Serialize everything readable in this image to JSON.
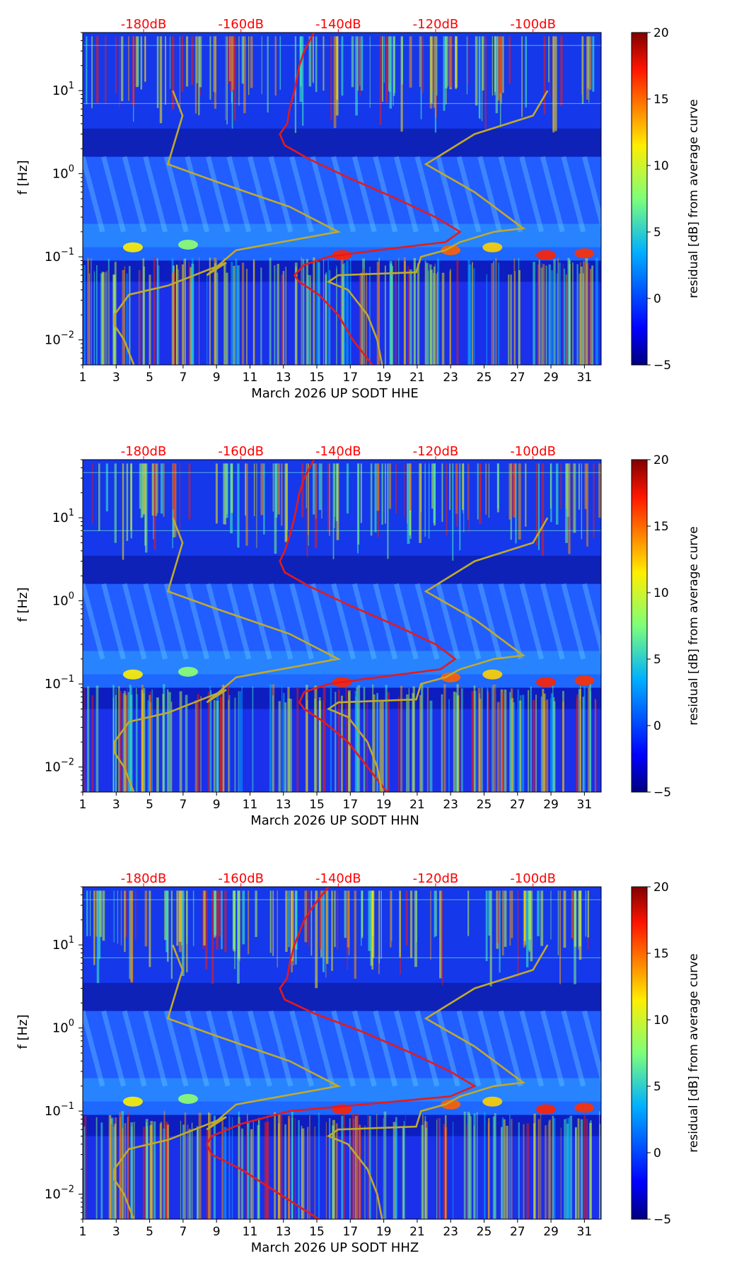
{
  "figure": {
    "colorbar": {
      "label": "residual [dB] from average curve",
      "ticks": [
        20,
        15,
        10,
        5,
        0,
        -5
      ],
      "range": [
        -5,
        20
      ]
    },
    "top_axis": {
      "labels": [
        "-180dB",
        "-160dB",
        "-140dB",
        "-120dB",
        "-100dB"
      ],
      "color": "#ff0000"
    },
    "ylabel": "f [Hz]",
    "xticks": [
      "1",
      "3",
      "5",
      "7",
      "9",
      "11",
      "13",
      "15",
      "17",
      "19",
      "21",
      "23",
      "25",
      "27",
      "29",
      "31"
    ]
  },
  "chart_data": [
    {
      "type": "heatmap",
      "title": "",
      "xlabel": "March 2026 UP SODT  HHE",
      "ylabel": "f [Hz]",
      "xlim": [
        1,
        32
      ],
      "ylim": [
        0.005,
        50
      ],
      "yscale": "log",
      "x_ticks": [
        1,
        3,
        5,
        7,
        9,
        11,
        13,
        15,
        17,
        19,
        21,
        23,
        25,
        27,
        29,
        31
      ],
      "y_ticks": [
        "10^-2",
        "10^-1",
        "10^0",
        "10^1"
      ],
      "top_axis_db": [
        -180,
        -160,
        -140,
        -120,
        -100
      ],
      "series": [
        {
          "name": "median PSD (red)",
          "color": "#e41a1c",
          "points": [
            [
              -145,
              50
            ],
            [
              -147,
              30
            ],
            [
              -148,
              20
            ],
            [
              -149,
              10
            ],
            [
              -150,
              6
            ],
            [
              -150.5,
              4
            ],
            [
              -152,
              3
            ],
            [
              -151,
              2.2
            ],
            [
              -146,
              1.5
            ],
            [
              -138,
              0.9
            ],
            [
              -128,
              0.5
            ],
            [
              -120,
              0.3
            ],
            [
              -115,
              0.2
            ],
            [
              -118,
              0.15
            ],
            [
              -132,
              0.12
            ],
            [
              -142,
              0.1
            ],
            [
              -147,
              0.08
            ],
            [
              -149,
              0.06
            ],
            [
              -148,
              0.05
            ],
            [
              -144,
              0.035
            ],
            [
              -140,
              0.02
            ],
            [
              -137,
              0.01
            ],
            [
              -133,
              0.005
            ]
          ]
        },
        {
          "name": "NLNM/NHNM (olive)",
          "color": "#bfaa2c",
          "points": [
            [
              -174,
              10
            ],
            [
              -172,
              5
            ],
            [
              -175,
              1.3
            ],
            [
              -165,
              0.8
            ],
            [
              -150,
              0.4
            ],
            [
              -140,
              0.2
            ],
            [
              -161,
              0.12
            ],
            [
              -167,
              0.06
            ],
            [
              -163,
              0.085
            ],
            [
              -175,
              0.045
            ],
            [
              -183,
              0.035
            ],
            [
              -186,
              0.02
            ],
            [
              -186,
              0.015
            ],
            [
              -184,
              0.01
            ],
            [
              -183,
              0.007
            ],
            [
              -182,
              0.005
            ]
          ]
        },
        {
          "name": "NHNM (olive right)",
          "color": "#bfaa2c",
          "points": [
            [
              -97,
              10
            ],
            [
              -100,
              5
            ],
            [
              -112,
              3
            ],
            [
              -122,
              1.3
            ],
            [
              -112,
              0.6
            ],
            [
              -102,
              0.22
            ],
            [
              -108,
              0.2
            ],
            [
              -115,
              0.15
            ],
            [
              -118,
              0.12
            ],
            [
              -123,
              0.1
            ],
            [
              -124,
              0.065
            ],
            [
              -140,
              0.06
            ],
            [
              -142,
              0.05
            ],
            [
              -138,
              0.04
            ],
            [
              -134,
              0.02
            ],
            [
              -132,
              0.01
            ],
            [
              -131,
              0.005
            ]
          ]
        }
      ]
    },
    {
      "type": "heatmap",
      "title": "",
      "xlabel": "March 2026 UP SODT  HHN",
      "ylabel": "f [Hz]",
      "xlim": [
        1,
        32
      ],
      "ylim": [
        0.005,
        50
      ],
      "yscale": "log",
      "x_ticks": [
        1,
        3,
        5,
        7,
        9,
        11,
        13,
        15,
        17,
        19,
        21,
        23,
        25,
        27,
        29,
        31
      ],
      "y_ticks": [
        "10^-2",
        "10^-1",
        "10^0",
        "10^1"
      ],
      "top_axis_db": [
        -180,
        -160,
        -140,
        -120,
        -100
      ],
      "series": [
        {
          "name": "median PSD (red)",
          "color": "#e41a1c",
          "points": [
            [
              -145,
              50
            ],
            [
              -147,
              30
            ],
            [
              -148,
              20
            ],
            [
              -149,
              10
            ],
            [
              -150,
              6
            ],
            [
              -151,
              4
            ],
            [
              -152,
              3
            ],
            [
              -151,
              2.2
            ],
            [
              -146,
              1.5
            ],
            [
              -138,
              0.9
            ],
            [
              -128,
              0.5
            ],
            [
              -120,
              0.3
            ],
            [
              -116,
              0.2
            ],
            [
              -119,
              0.15
            ],
            [
              -132,
              0.12
            ],
            [
              -142,
              0.1
            ],
            [
              -147,
              0.08
            ],
            [
              -148,
              0.06
            ],
            [
              -147,
              0.05
            ],
            [
              -143,
              0.035
            ],
            [
              -138,
              0.02
            ],
            [
              -134,
              0.01
            ],
            [
              -130,
              0.005
            ]
          ]
        },
        {
          "name": "NLNM/NHNM (olive)",
          "color": "#bfaa2c",
          "points": [
            [
              -174,
              10
            ],
            [
              -172,
              5
            ],
            [
              -175,
              1.3
            ],
            [
              -165,
              0.8
            ],
            [
              -150,
              0.4
            ],
            [
              -140,
              0.2
            ],
            [
              -161,
              0.12
            ],
            [
              -167,
              0.06
            ],
            [
              -163,
              0.085
            ],
            [
              -175,
              0.045
            ],
            [
              -183,
              0.035
            ],
            [
              -186,
              0.02
            ],
            [
              -186,
              0.015
            ],
            [
              -184,
              0.01
            ],
            [
              -183,
              0.007
            ],
            [
              -182,
              0.005
            ]
          ]
        },
        {
          "name": "NHNM (olive right)",
          "color": "#bfaa2c",
          "points": [
            [
              -97,
              10
            ],
            [
              -100,
              5
            ],
            [
              -112,
              3
            ],
            [
              -122,
              1.3
            ],
            [
              -112,
              0.6
            ],
            [
              -102,
              0.22
            ],
            [
              -108,
              0.2
            ],
            [
              -115,
              0.15
            ],
            [
              -118,
              0.12
            ],
            [
              -123,
              0.1
            ],
            [
              -124,
              0.065
            ],
            [
              -140,
              0.06
            ],
            [
              -142,
              0.05
            ],
            [
              -138,
              0.04
            ],
            [
              -134,
              0.02
            ],
            [
              -132,
              0.01
            ],
            [
              -131,
              0.005
            ]
          ]
        }
      ]
    },
    {
      "type": "heatmap",
      "title": "",
      "xlabel": "March 2026 UP SODT  HHZ",
      "ylabel": "f [Hz]",
      "xlim": [
        1,
        32
      ],
      "ylim": [
        0.005,
        50
      ],
      "yscale": "log",
      "x_ticks": [
        1,
        3,
        5,
        7,
        9,
        11,
        13,
        15,
        17,
        19,
        21,
        23,
        25,
        27,
        29,
        31
      ],
      "y_ticks": [
        "10^-2",
        "10^-1",
        "10^0",
        "10^1"
      ],
      "top_axis_db": [
        -180,
        -160,
        -140,
        -120,
        -100
      ],
      "series": [
        {
          "name": "median PSD (red)",
          "color": "#e41a1c",
          "points": [
            [
              -142,
              50
            ],
            [
              -145,
              30
            ],
            [
              -147,
              20
            ],
            [
              -149,
              10
            ],
            [
              -150,
              6
            ],
            [
              -150.5,
              4
            ],
            [
              -152,
              3
            ],
            [
              -151,
              2.2
            ],
            [
              -145,
              1.5
            ],
            [
              -135,
              0.9
            ],
            [
              -125,
              0.5
            ],
            [
              -117,
              0.3
            ],
            [
              -112,
              0.2
            ],
            [
              -117,
              0.15
            ],
            [
              -135,
              0.12
            ],
            [
              -150,
              0.1
            ],
            [
              -160,
              0.07
            ],
            [
              -166,
              0.05
            ],
            [
              -167,
              0.04
            ],
            [
              -166,
              0.03
            ],
            [
              -160,
              0.02
            ],
            [
              -152,
              0.01
            ],
            [
              -144,
              0.005
            ]
          ]
        },
        {
          "name": "NLNM/NHNM (olive)",
          "color": "#bfaa2c",
          "points": [
            [
              -174,
              10
            ],
            [
              -172,
              5
            ],
            [
              -175,
              1.3
            ],
            [
              -165,
              0.8
            ],
            [
              -150,
              0.4
            ],
            [
              -140,
              0.2
            ],
            [
              -161,
              0.12
            ],
            [
              -167,
              0.06
            ],
            [
              -163,
              0.085
            ],
            [
              -175,
              0.045
            ],
            [
              -183,
              0.035
            ],
            [
              -186,
              0.02
            ],
            [
              -186,
              0.015
            ],
            [
              -184,
              0.01
            ],
            [
              -183,
              0.007
            ],
            [
              -182,
              0.005
            ]
          ]
        },
        {
          "name": "NHNM (olive right)",
          "color": "#bfaa2c",
          "points": [
            [
              -97,
              10
            ],
            [
              -100,
              5
            ],
            [
              -112,
              3
            ],
            [
              -122,
              1.3
            ],
            [
              -112,
              0.6
            ],
            [
              -102,
              0.22
            ],
            [
              -108,
              0.2
            ],
            [
              -115,
              0.15
            ],
            [
              -118,
              0.12
            ],
            [
              -123,
              0.1
            ],
            [
              -124,
              0.065
            ],
            [
              -140,
              0.06
            ],
            [
              -142,
              0.05
            ],
            [
              -138,
              0.04
            ],
            [
              -134,
              0.02
            ],
            [
              -132,
              0.01
            ],
            [
              -131,
              0.005
            ]
          ]
        }
      ]
    }
  ]
}
